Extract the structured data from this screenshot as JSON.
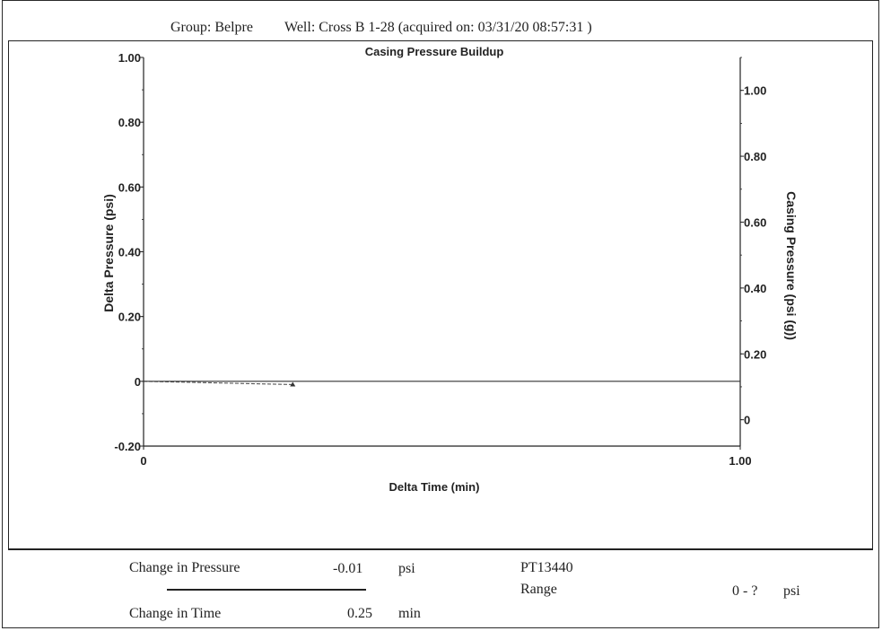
{
  "header": {
    "group": "Group: Belpre",
    "well": "Well: Cross B 1-28 (acquired on: 03/31/20 08:57:31 )"
  },
  "chart_data": {
    "type": "line",
    "title": "Casing Pressure Buildup",
    "xlabel": "Delta Time (min)",
    "ylabel": "Delta Pressure (psi)",
    "y2label": "Casing Pressure (psi (g))",
    "xlim": [
      0,
      1.0
    ],
    "ylim": [
      -0.2,
      1.0
    ],
    "y2lim": [
      -0.08,
      1.1
    ],
    "x_ticks": [
      "0",
      "1.00"
    ],
    "y_ticks": [
      "-0.20",
      "0",
      "0.20",
      "0.40",
      "0.60",
      "0.80",
      "1.00"
    ],
    "y2_ticks": [
      "0",
      "0.20",
      "0.40",
      "0.60",
      "0.80",
      "1.00"
    ],
    "grid": false,
    "series": [
      {
        "x": [
          0,
          0.25
        ],
        "y": [
          0,
          -0.01
        ],
        "color": "#555555",
        "style": "dashed",
        "marker": "triangle"
      },
      {
        "x": [
          0,
          1.0
        ],
        "y": [
          0,
          0
        ],
        "color": "#333333",
        "style": "solid"
      }
    ]
  },
  "summary": {
    "pressure_label": "Change in Pressure",
    "pressure_value": "-0.01",
    "pressure_unit": "psi",
    "time_label": "Change in Time",
    "time_value": "0.25",
    "time_unit": "min",
    "device": "PT13440",
    "range_label": "Range",
    "range_value": "0 - ?",
    "range_unit": "psi"
  }
}
